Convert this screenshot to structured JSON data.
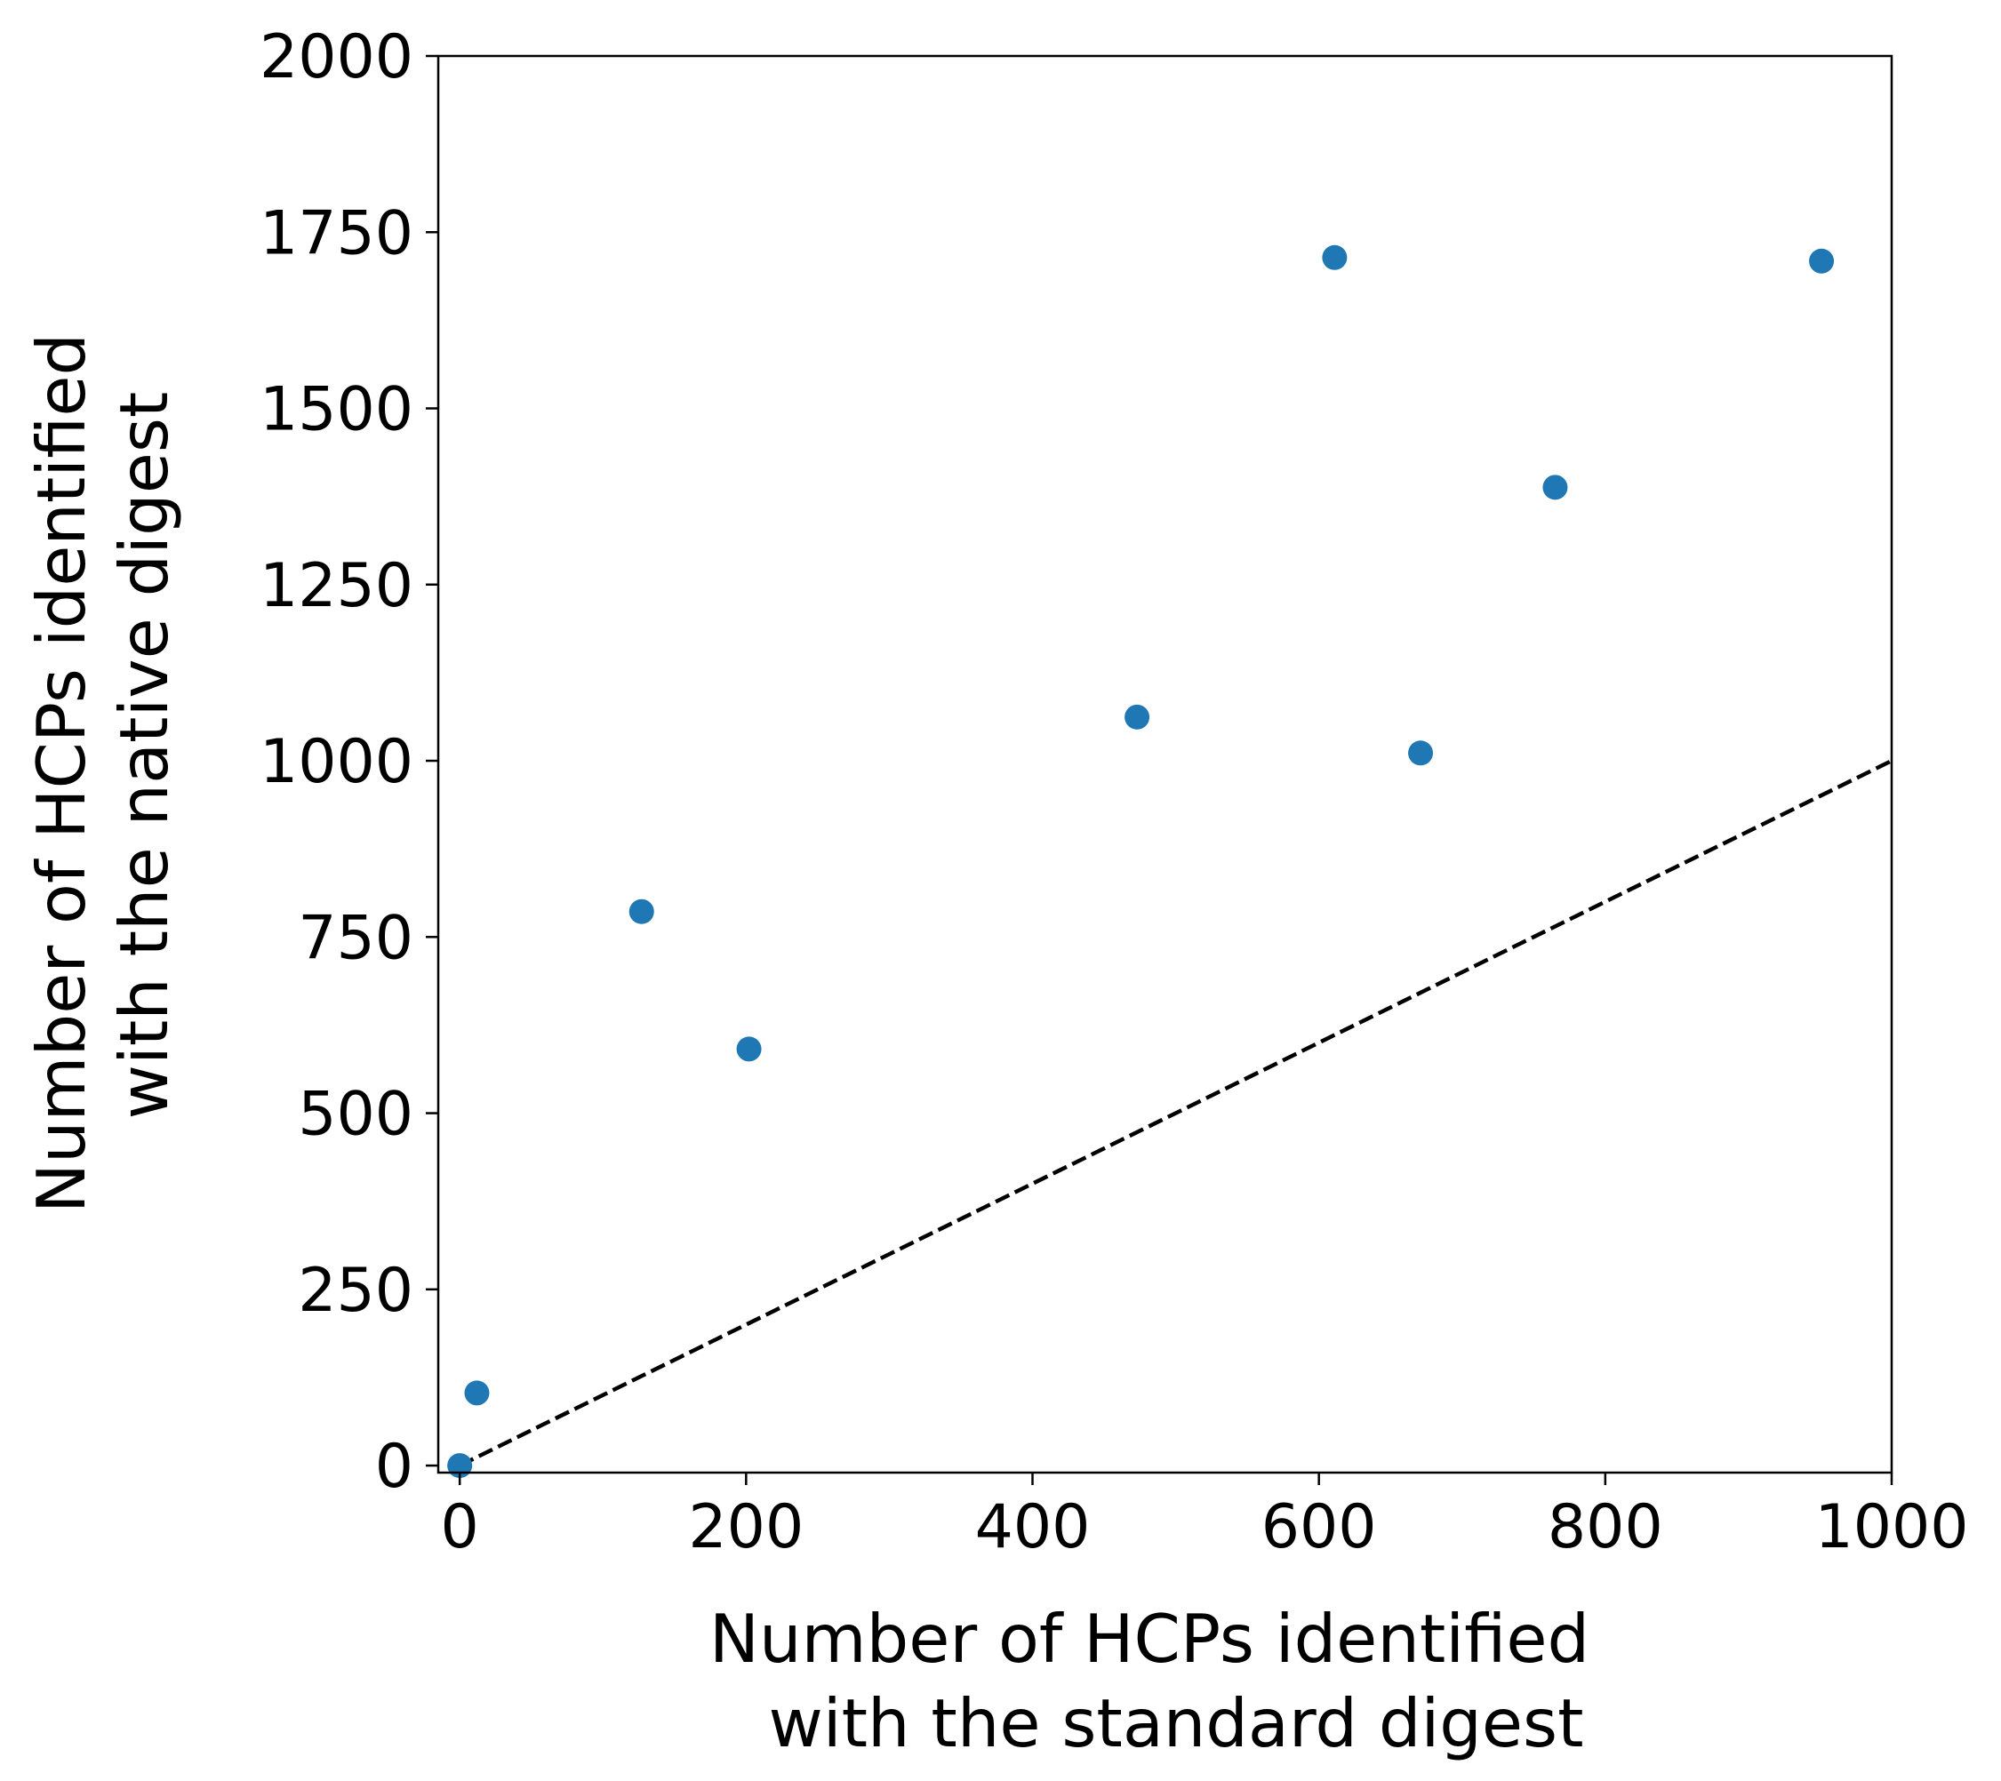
{
  "chart_data": {
    "type": "scatter",
    "title": "",
    "xlabel": [
      "Number of HCPs identified",
      "with the standard digest"
    ],
    "ylabel": [
      "Number of HCPs identified",
      "with the native digest"
    ],
    "xlim": [
      -15,
      1000
    ],
    "ylim": [
      -10,
      2000
    ],
    "xticks": [
      0,
      200,
      400,
      600,
      800,
      1000
    ],
    "yticks": [
      0,
      250,
      500,
      750,
      1000,
      1250,
      1500,
      1750,
      2000
    ],
    "grid": false,
    "legend": "none",
    "series": [
      {
        "color": "#1f77b4",
        "points": [
          {
            "x": 0,
            "y": 0
          },
          {
            "x": 12,
            "y": 103
          },
          {
            "x": 127,
            "y": 786
          },
          {
            "x": 202,
            "y": 591
          },
          {
            "x": 473,
            "y": 1062
          },
          {
            "x": 611,
            "y": 1714
          },
          {
            "x": 671,
            "y": 1011
          },
          {
            "x": 765,
            "y": 1388
          },
          {
            "x": 951,
            "y": 1709
          }
        ]
      }
    ],
    "reference_line": {
      "style": "dashed",
      "color": "#000000",
      "from": [
        0,
        0
      ],
      "to": [
        1000,
        1000
      ]
    }
  }
}
